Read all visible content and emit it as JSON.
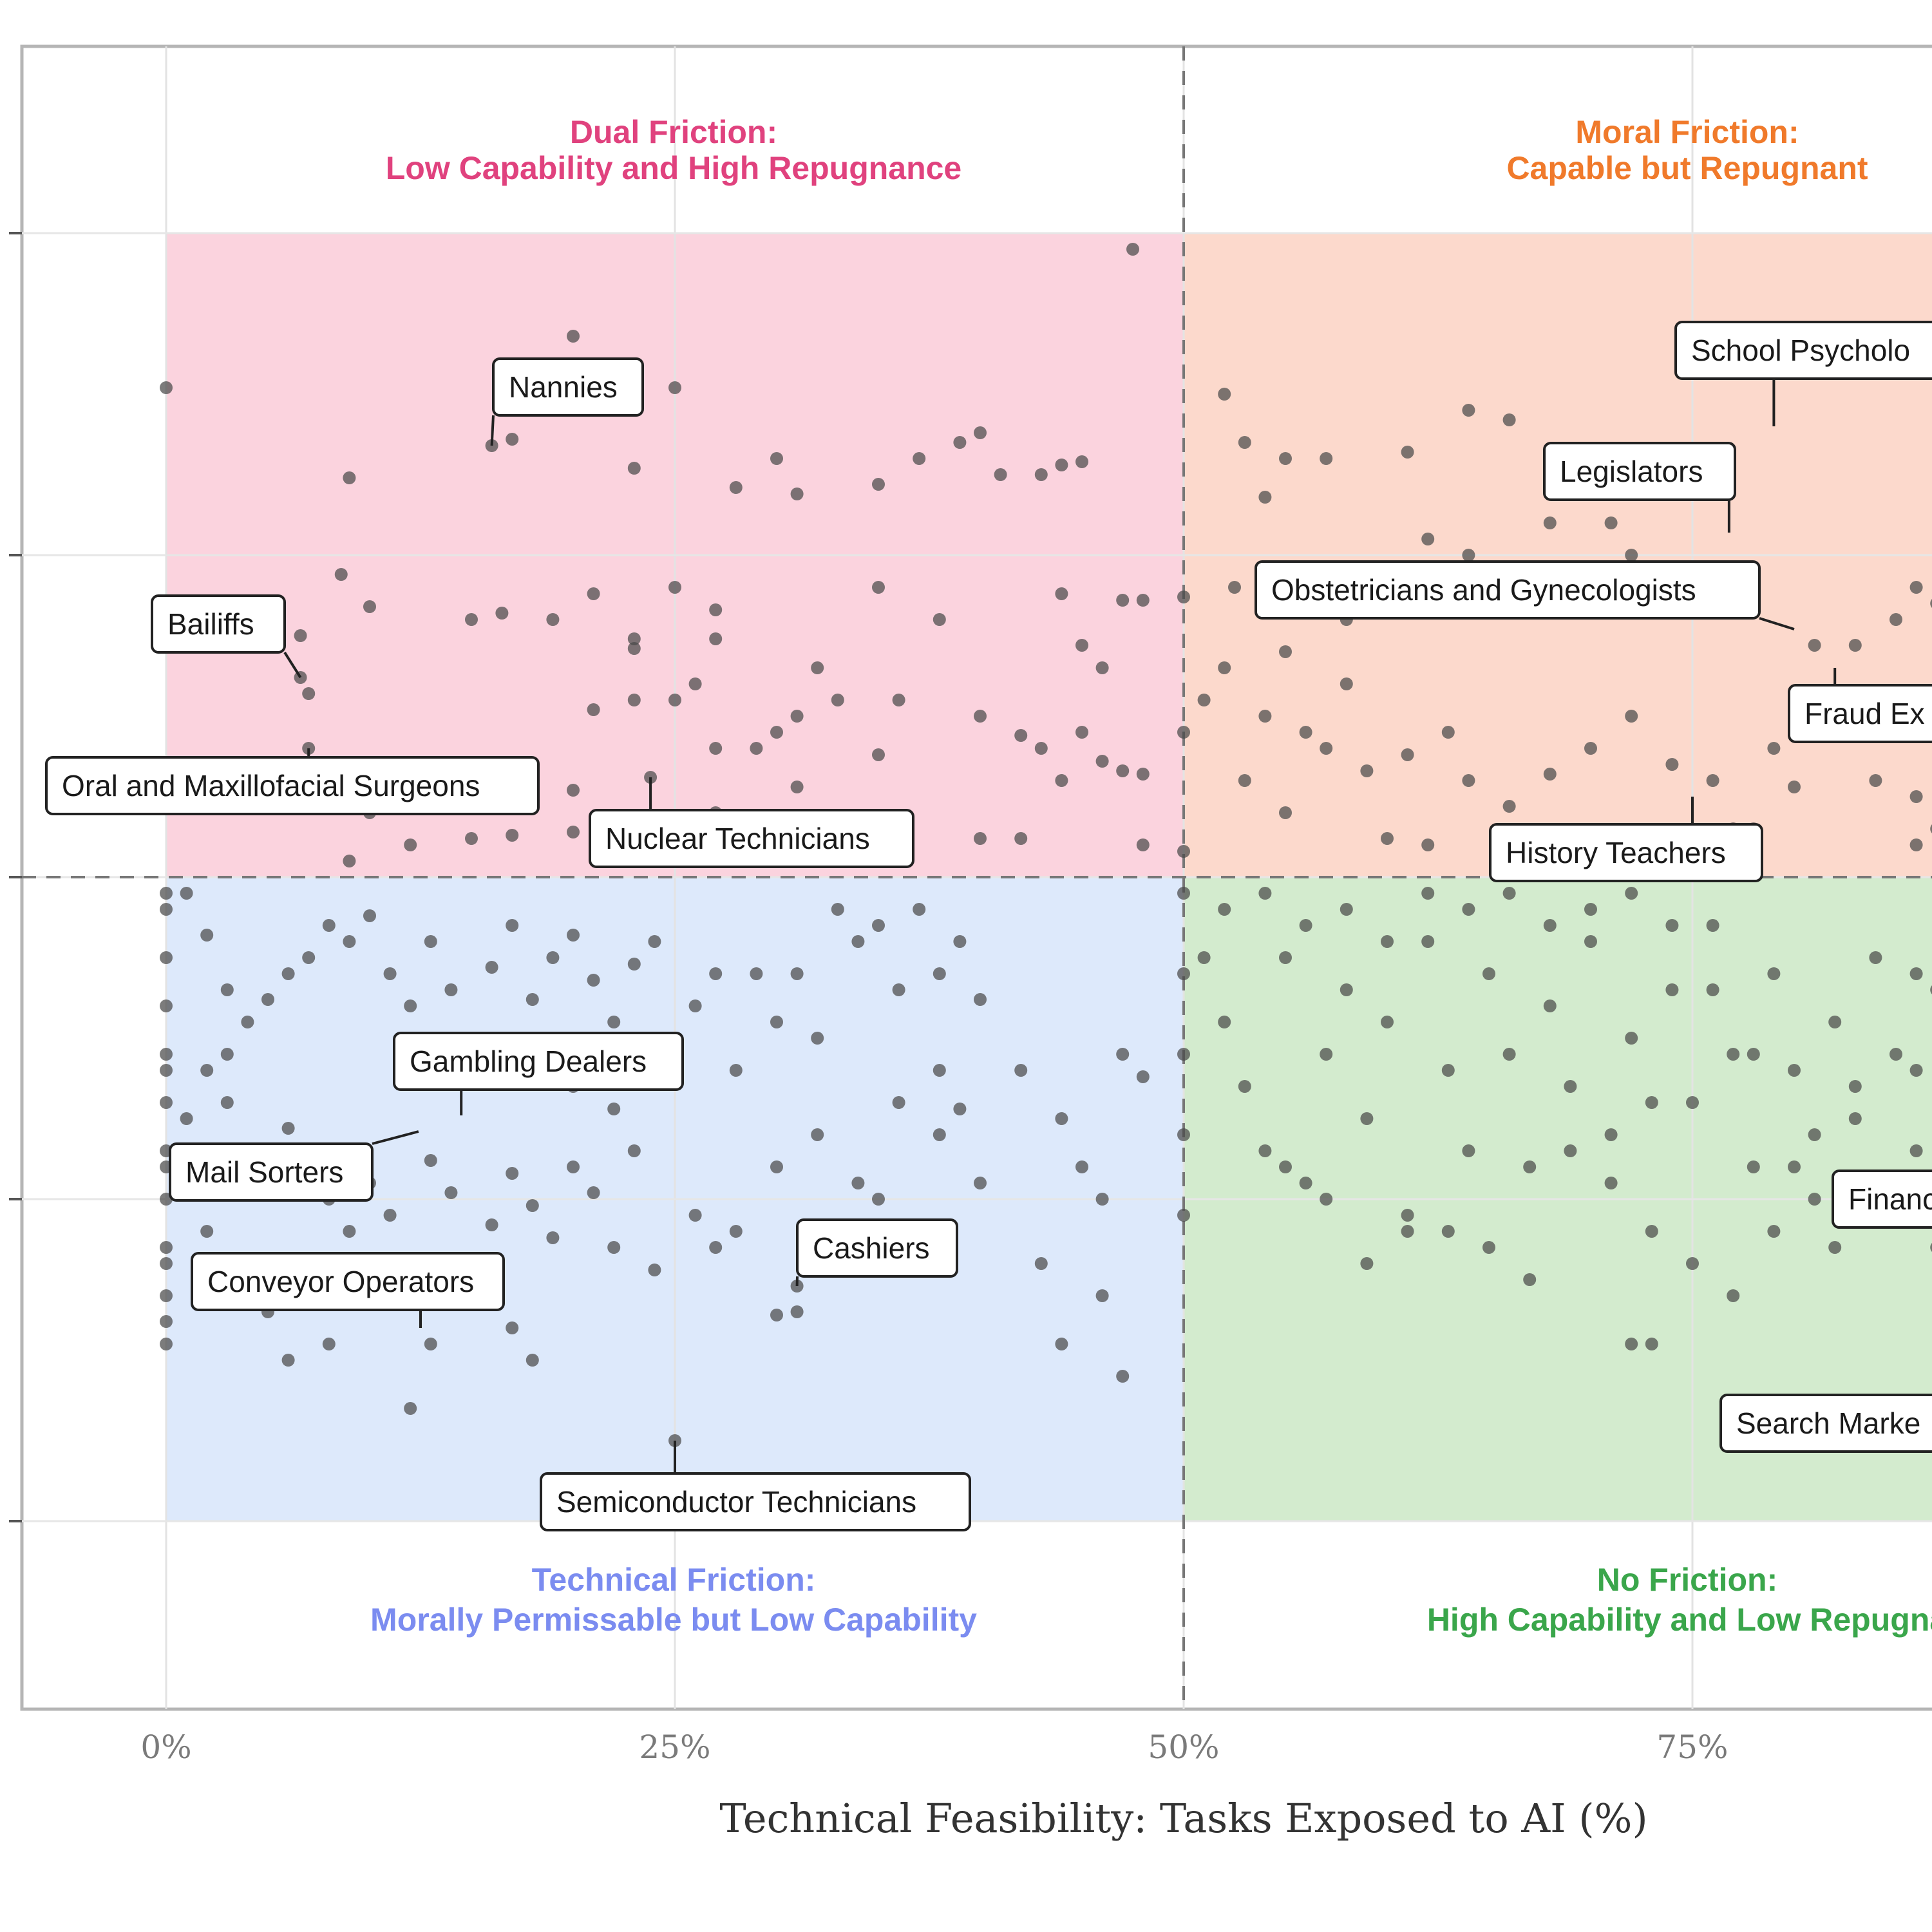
{
  "colors": {
    "dual_friction": "#e0427e",
    "moral_friction": "#f07a2b",
    "technical_friction": "#7b8cf0",
    "no_friction": "#3aa64b",
    "dual_bg": "#fbd3de",
    "moral_bg": "#fcd9cc",
    "technical_bg": "#dde9fb",
    "no_bg": "#d3ebce"
  },
  "quadrants": {
    "top_left": {
      "title": "Dual Friction:",
      "subtitle": "Low Capability and High Repugnance"
    },
    "top_right": {
      "title": "Moral Friction:",
      "subtitle": "Capable but Repugnant"
    },
    "bottom_left": {
      "title": "Technical Friction:",
      "subtitle": "Morally Permissable but Low Capability"
    },
    "bottom_right": {
      "title": "No Friction:",
      "subtitle": "High Capability and Low Repugna"
    }
  },
  "chart_data": {
    "type": "scatter",
    "title": "",
    "xlabel": "Technical Feasibility: Tasks Exposed to AI (%)",
    "ylabel": "",
    "x_ticks": [
      "0%",
      "25%",
      "50%",
      "75%"
    ],
    "xlim": [
      -7,
      88
    ],
    "ylim": [
      -3.8,
      3.8
    ],
    "x_threshold": 50,
    "y_threshold": 0,
    "grid": true,
    "annotations": [
      {
        "label": "Nannies",
        "x": 16,
        "y": 1.34
      },
      {
        "label": "Bailiffs",
        "x": 6.6,
        "y": 0.62
      },
      {
        "label": "Oral and Maxillofacial Surgeons",
        "x": 7,
        "y": 0.4
      },
      {
        "label": "Nuclear Technicians",
        "x": 23.8,
        "y": 0.31
      },
      {
        "label": "Gambling Dealers",
        "x": 14.5,
        "y": -0.74
      },
      {
        "label": "Mail Sorters",
        "x": 12.4,
        "y": -0.79
      },
      {
        "label": "Conveyor Operators",
        "x": 12.5,
        "y": -1.4
      },
      {
        "label": "Cashiers",
        "x": 31,
        "y": -1.27
      },
      {
        "label": "Semiconductor Technicians",
        "x": 25,
        "y": -1.75
      },
      {
        "label": "School Psycholo",
        "x": 79,
        "y": 1.4
      },
      {
        "label": "Legislators",
        "x": 76.8,
        "y": 1.07
      },
      {
        "label": "Obstetricians and Gynecologists",
        "x": 80,
        "y": 0.77
      },
      {
        "label": "Fraud Ex",
        "x": 82,
        "y": 0.65
      },
      {
        "label": "History Teachers",
        "x": 75,
        "y": 0.25
      },
      {
        "label": "Financ",
        "x": 85,
        "y": -1
      },
      {
        "label": "Search Marke",
        "x": 86,
        "y": -1.7
      }
    ],
    "points": [
      [
        20,
        1.68
      ],
      [
        19,
        1.48
      ],
      [
        17,
        1.36
      ],
      [
        16,
        1.34
      ],
      [
        25,
        1.52
      ],
      [
        9,
        1.24
      ],
      [
        30,
        1.3
      ],
      [
        23,
        1.27
      ],
      [
        28,
        1.21
      ],
      [
        31,
        1.19
      ],
      [
        35,
        1.22
      ],
      [
        37,
        1.3
      ],
      [
        40,
        1.38
      ],
      [
        39,
        1.35
      ],
      [
        41,
        1.25
      ],
      [
        44,
        1.28
      ],
      [
        43,
        1.25
      ],
      [
        45,
        1.29
      ],
      [
        47.5,
        1.95
      ],
      [
        0,
        1.52
      ],
      [
        8.6,
        0.94
      ],
      [
        10,
        0.84
      ],
      [
        15,
        0.8
      ],
      [
        16.5,
        0.82
      ],
      [
        19,
        0.8
      ],
      [
        21,
        0.88
      ],
      [
        23,
        0.74
      ],
      [
        23,
        0.71
      ],
      [
        25,
        0.9
      ],
      [
        27,
        0.74
      ],
      [
        27,
        0.83
      ],
      [
        32,
        0.65
      ],
      [
        35,
        0.9
      ],
      [
        38,
        0.8
      ],
      [
        44,
        0.88
      ],
      [
        45,
        0.72
      ],
      [
        46,
        0.65
      ],
      [
        47,
        0.86
      ],
      [
        48,
        0.86
      ],
      [
        50,
        0.87
      ],
      [
        6.6,
        0.75
      ],
      [
        6.6,
        0.62
      ],
      [
        7,
        0.57
      ],
      [
        7,
        0.4
      ],
      [
        10,
        0.2
      ],
      [
        13,
        0.25
      ],
      [
        16.5,
        0.27
      ],
      [
        20,
        0.27
      ],
      [
        21,
        0.52
      ],
      [
        23,
        0.55
      ],
      [
        25,
        0.55
      ],
      [
        26,
        0.6
      ],
      [
        27,
        0.4
      ],
      [
        29,
        0.4
      ],
      [
        30,
        0.45
      ],
      [
        31,
        0.5
      ],
      [
        33,
        0.55
      ],
      [
        35,
        0.38
      ],
      [
        36,
        0.55
      ],
      [
        40,
        0.5
      ],
      [
        42,
        0.44
      ],
      [
        43,
        0.4
      ],
      [
        44,
        0.3
      ],
      [
        45,
        0.45
      ],
      [
        46,
        0.36
      ],
      [
        47,
        0.33
      ],
      [
        48,
        0.32
      ],
      [
        23.8,
        0.31
      ],
      [
        20,
        0.14
      ],
      [
        15,
        0.12
      ],
      [
        17,
        0.13
      ],
      [
        9,
        0.05
      ],
      [
        12,
        0.1
      ],
      [
        27,
        0.2
      ],
      [
        31,
        0.28
      ],
      [
        33,
        0.12
      ],
      [
        40,
        0.12
      ],
      [
        42,
        0.12
      ],
      [
        48,
        0.1
      ],
      [
        50,
        0.45
      ],
      [
        52,
        1.5
      ],
      [
        53,
        1.35
      ],
      [
        55,
        1.3
      ],
      [
        57,
        1.3
      ],
      [
        61,
        1.32
      ],
      [
        64,
        1.45
      ],
      [
        66,
        1.42
      ],
      [
        68,
        1.1
      ],
      [
        71,
        1.1
      ],
      [
        73,
        1.2
      ],
      [
        75,
        1.25
      ],
      [
        72,
        1.0
      ],
      [
        69,
        0.95
      ],
      [
        64,
        1.0
      ],
      [
        62,
        1.05
      ],
      [
        60,
        0.82
      ],
      [
        58,
        0.8
      ],
      [
        55,
        0.7
      ],
      [
        54,
        0.5
      ],
      [
        52,
        0.65
      ],
      [
        51,
        0.55
      ],
      [
        53,
        0.3
      ],
      [
        55,
        0.2
      ],
      [
        57,
        0.4
      ],
      [
        59,
        0.33
      ],
      [
        61,
        0.38
      ],
      [
        63,
        0.45
      ],
      [
        64,
        0.3
      ],
      [
        66,
        0.22
      ],
      [
        68,
        0.32
      ],
      [
        70,
        0.4
      ],
      [
        72,
        0.5
      ],
      [
        74,
        0.35
      ],
      [
        76,
        0.3
      ],
      [
        77,
        0.15
      ],
      [
        79,
        0.4
      ],
      [
        80,
        0.55
      ],
      [
        82,
        0.5
      ],
      [
        84,
        0.45
      ],
      [
        85,
        0.55
      ],
      [
        86,
        0.25
      ],
      [
        87,
        0.15
      ],
      [
        86,
        0.1
      ],
      [
        84,
        0.3
      ],
      [
        81,
        0.72
      ],
      [
        83,
        0.72
      ],
      [
        85,
        0.8
      ],
      [
        86,
        0.9
      ],
      [
        87,
        0.85
      ],
      [
        78,
        0.15
      ],
      [
        80,
        0.28
      ],
      [
        60,
        0.12
      ],
      [
        62,
        0.1
      ],
      [
        56,
        0.45
      ],
      [
        58,
        0.6
      ],
      [
        54,
        1.18
      ],
      [
        74,
        0.82
      ],
      [
        71,
        0.9
      ],
      [
        50,
        0.08
      ],
      [
        52.5,
        0.9
      ],
      [
        1,
        -0.05
      ],
      [
        2,
        -0.18
      ],
      [
        3,
        -0.35
      ],
      [
        4,
        -0.45
      ],
      [
        5,
        -0.38
      ],
      [
        6,
        -0.3
      ],
      [
        7,
        -0.25
      ],
      [
        8,
        -0.15
      ],
      [
        9,
        -0.2
      ],
      [
        10,
        -0.12
      ],
      [
        11,
        -0.3
      ],
      [
        12,
        -0.4
      ],
      [
        13,
        -0.2
      ],
      [
        14,
        -0.35
      ],
      [
        15,
        -0.5
      ],
      [
        16,
        -0.28
      ],
      [
        17,
        -0.15
      ],
      [
        18,
        -0.38
      ],
      [
        19,
        -0.25
      ],
      [
        20,
        -0.18
      ],
      [
        21,
        -0.32
      ],
      [
        22,
        -0.45
      ],
      [
        23,
        -0.27
      ],
      [
        24,
        -0.2
      ],
      [
        25,
        -0.55
      ],
      [
        26,
        -0.4
      ],
      [
        27,
        -0.3
      ],
      [
        28,
        -0.6
      ],
      [
        29,
        -0.3
      ],
      [
        30,
        -0.45
      ],
      [
        31,
        -0.3
      ],
      [
        32,
        -0.5
      ],
      [
        33,
        -0.1
      ],
      [
        34,
        -0.2
      ],
      [
        35,
        -0.15
      ],
      [
        36,
        -0.35
      ],
      [
        37,
        -0.1
      ],
      [
        38,
        -0.3
      ],
      [
        39,
        -0.2
      ],
      [
        40,
        -0.38
      ],
      [
        2,
        -0.6
      ],
      [
        3,
        -0.7
      ],
      [
        4,
        -0.85
      ],
      [
        5,
        -0.95
      ],
      [
        6,
        -0.78
      ],
      [
        7,
        -0.9
      ],
      [
        8,
        -1.0
      ],
      [
        9,
        -1.1
      ],
      [
        10,
        -0.95
      ],
      [
        11,
        -1.05
      ],
      [
        13,
        -0.88
      ],
      [
        14,
        -0.98
      ],
      [
        15,
        -1.2
      ],
      [
        16,
        -1.08
      ],
      [
        17,
        -0.92
      ],
      [
        18,
        -1.02
      ],
      [
        19,
        -1.12
      ],
      [
        20,
        -0.9
      ],
      [
        21,
        -0.98
      ],
      [
        22,
        -1.15
      ],
      [
        23,
        -0.85
      ],
      [
        24,
        -1.22
      ],
      [
        26,
        -1.05
      ],
      [
        27,
        -1.15
      ],
      [
        28,
        -1.1
      ],
      [
        30,
        -0.9
      ],
      [
        31,
        -1.27
      ],
      [
        32,
        -0.8
      ],
      [
        34,
        -0.95
      ],
      [
        36,
        -0.7
      ],
      [
        38,
        -0.8
      ],
      [
        40,
        -0.95
      ],
      [
        42,
        -0.6
      ],
      [
        44,
        -0.75
      ],
      [
        45,
        -0.9
      ],
      [
        46,
        -1.0
      ],
      [
        47,
        -0.55
      ],
      [
        48,
        -0.62
      ],
      [
        44,
        -1.45
      ],
      [
        47,
        -1.55
      ],
      [
        5,
        -1.35
      ],
      [
        6,
        -1.5
      ],
      [
        8,
        -1.45
      ],
      [
        10,
        -1.3
      ],
      [
        12,
        -1.65
      ],
      [
        13,
        -1.45
      ],
      [
        15,
        -1.25
      ],
      [
        17,
        -1.4
      ],
      [
        18,
        -1.5
      ],
      [
        25,
        -1.75
      ],
      [
        31,
        -1.35
      ],
      [
        30,
        -1.36
      ],
      [
        43,
        -1.2
      ],
      [
        46,
        -1.3
      ],
      [
        35,
        -1.0
      ],
      [
        38,
        -0.6
      ],
      [
        39,
        -0.72
      ],
      [
        20,
        -0.65
      ],
      [
        22,
        -0.72
      ],
      [
        16,
        -0.6
      ],
      [
        0,
        -0.1
      ],
      [
        0,
        -0.25
      ],
      [
        0,
        -0.4
      ],
      [
        0,
        -0.55
      ],
      [
        0,
        -0.7
      ],
      [
        0,
        -0.85
      ],
      [
        0,
        -1.0
      ],
      [
        0,
        -1.15
      ],
      [
        0,
        -1.3
      ],
      [
        0,
        -1.45
      ],
      [
        0,
        -0.05
      ],
      [
        0,
        -0.6
      ],
      [
        0,
        -0.9
      ],
      [
        0,
        -1.2
      ],
      [
        0,
        -1.38
      ],
      [
        1,
        -0.75
      ],
      [
        1,
        -0.95
      ],
      [
        2,
        -1.1
      ],
      [
        3,
        -0.55
      ],
      [
        4,
        -1.25
      ],
      [
        50,
        -0.05
      ],
      [
        50,
        -0.3
      ],
      [
        50,
        -0.55
      ],
      [
        50,
        -0.8
      ],
      [
        50,
        -1.05
      ],
      [
        51,
        -0.25
      ],
      [
        52,
        -0.45
      ],
      [
        53,
        -0.65
      ],
      [
        54,
        -0.85
      ],
      [
        55,
        -0.25
      ],
      [
        56,
        -0.95
      ],
      [
        57,
        -0.55
      ],
      [
        58,
        -0.35
      ],
      [
        59,
        -0.75
      ],
      [
        60,
        -0.45
      ],
      [
        61,
        -1.05
      ],
      [
        62,
        -0.2
      ],
      [
        63,
        -0.6
      ],
      [
        64,
        -0.85
      ],
      [
        65,
        -0.3
      ],
      [
        66,
        -0.55
      ],
      [
        67,
        -0.9
      ],
      [
        68,
        -0.4
      ],
      [
        69,
        -0.65
      ],
      [
        70,
        -0.2
      ],
      [
        71,
        -0.8
      ],
      [
        72,
        -0.5
      ],
      [
        73,
        -1.1
      ],
      [
        74,
        -0.35
      ],
      [
        75,
        -0.7
      ],
      [
        76,
        -0.15
      ],
      [
        77,
        -0.55
      ],
      [
        78,
        -0.9
      ],
      [
        79,
        -0.3
      ],
      [
        80,
        -0.6
      ],
      [
        81,
        -1.0
      ],
      [
        82,
        -0.45
      ],
      [
        83,
        -0.75
      ],
      [
        84,
        -0.25
      ],
      [
        85,
        -0.55
      ],
      [
        86,
        -0.85
      ],
      [
        87,
        -0.35
      ],
      [
        86,
        -0.6
      ],
      [
        84,
        -1.05
      ],
      [
        82,
        -1.15
      ],
      [
        80,
        -0.9
      ],
      [
        78,
        -0.55
      ],
      [
        76,
        -0.35
      ],
      [
        74,
        -0.15
      ],
      [
        72,
        -0.05
      ],
      [
        70,
        -0.1
      ],
      [
        68,
        -0.15
      ],
      [
        66,
        -0.05
      ],
      [
        64,
        -0.1
      ],
      [
        62,
        -0.05
      ],
      [
        60,
        -0.2
      ],
      [
        58,
        -0.1
      ],
      [
        56,
        -0.15
      ],
      [
        54,
        -0.05
      ],
      [
        52,
        -0.1
      ],
      [
        72,
        -1.45
      ],
      [
        73,
        -1.45
      ],
      [
        55,
        -0.9
      ],
      [
        57,
        -1.0
      ],
      [
        59,
        -1.2
      ],
      [
        61,
        -1.1
      ],
      [
        63,
        -1.1
      ],
      [
        65,
        -1.15
      ],
      [
        67,
        -1.25
      ],
      [
        69,
        -0.85
      ],
      [
        71,
        -0.95
      ],
      [
        73,
        -0.7
      ],
      [
        75,
        -1.2
      ],
      [
        77,
        -1.3
      ],
      [
        79,
        -1.1
      ],
      [
        81,
        -0.8
      ],
      [
        83,
        -0.65
      ],
      [
        85,
        -0.95
      ],
      [
        87,
        -1.15
      ],
      [
        86,
        -0.3
      ]
    ]
  }
}
